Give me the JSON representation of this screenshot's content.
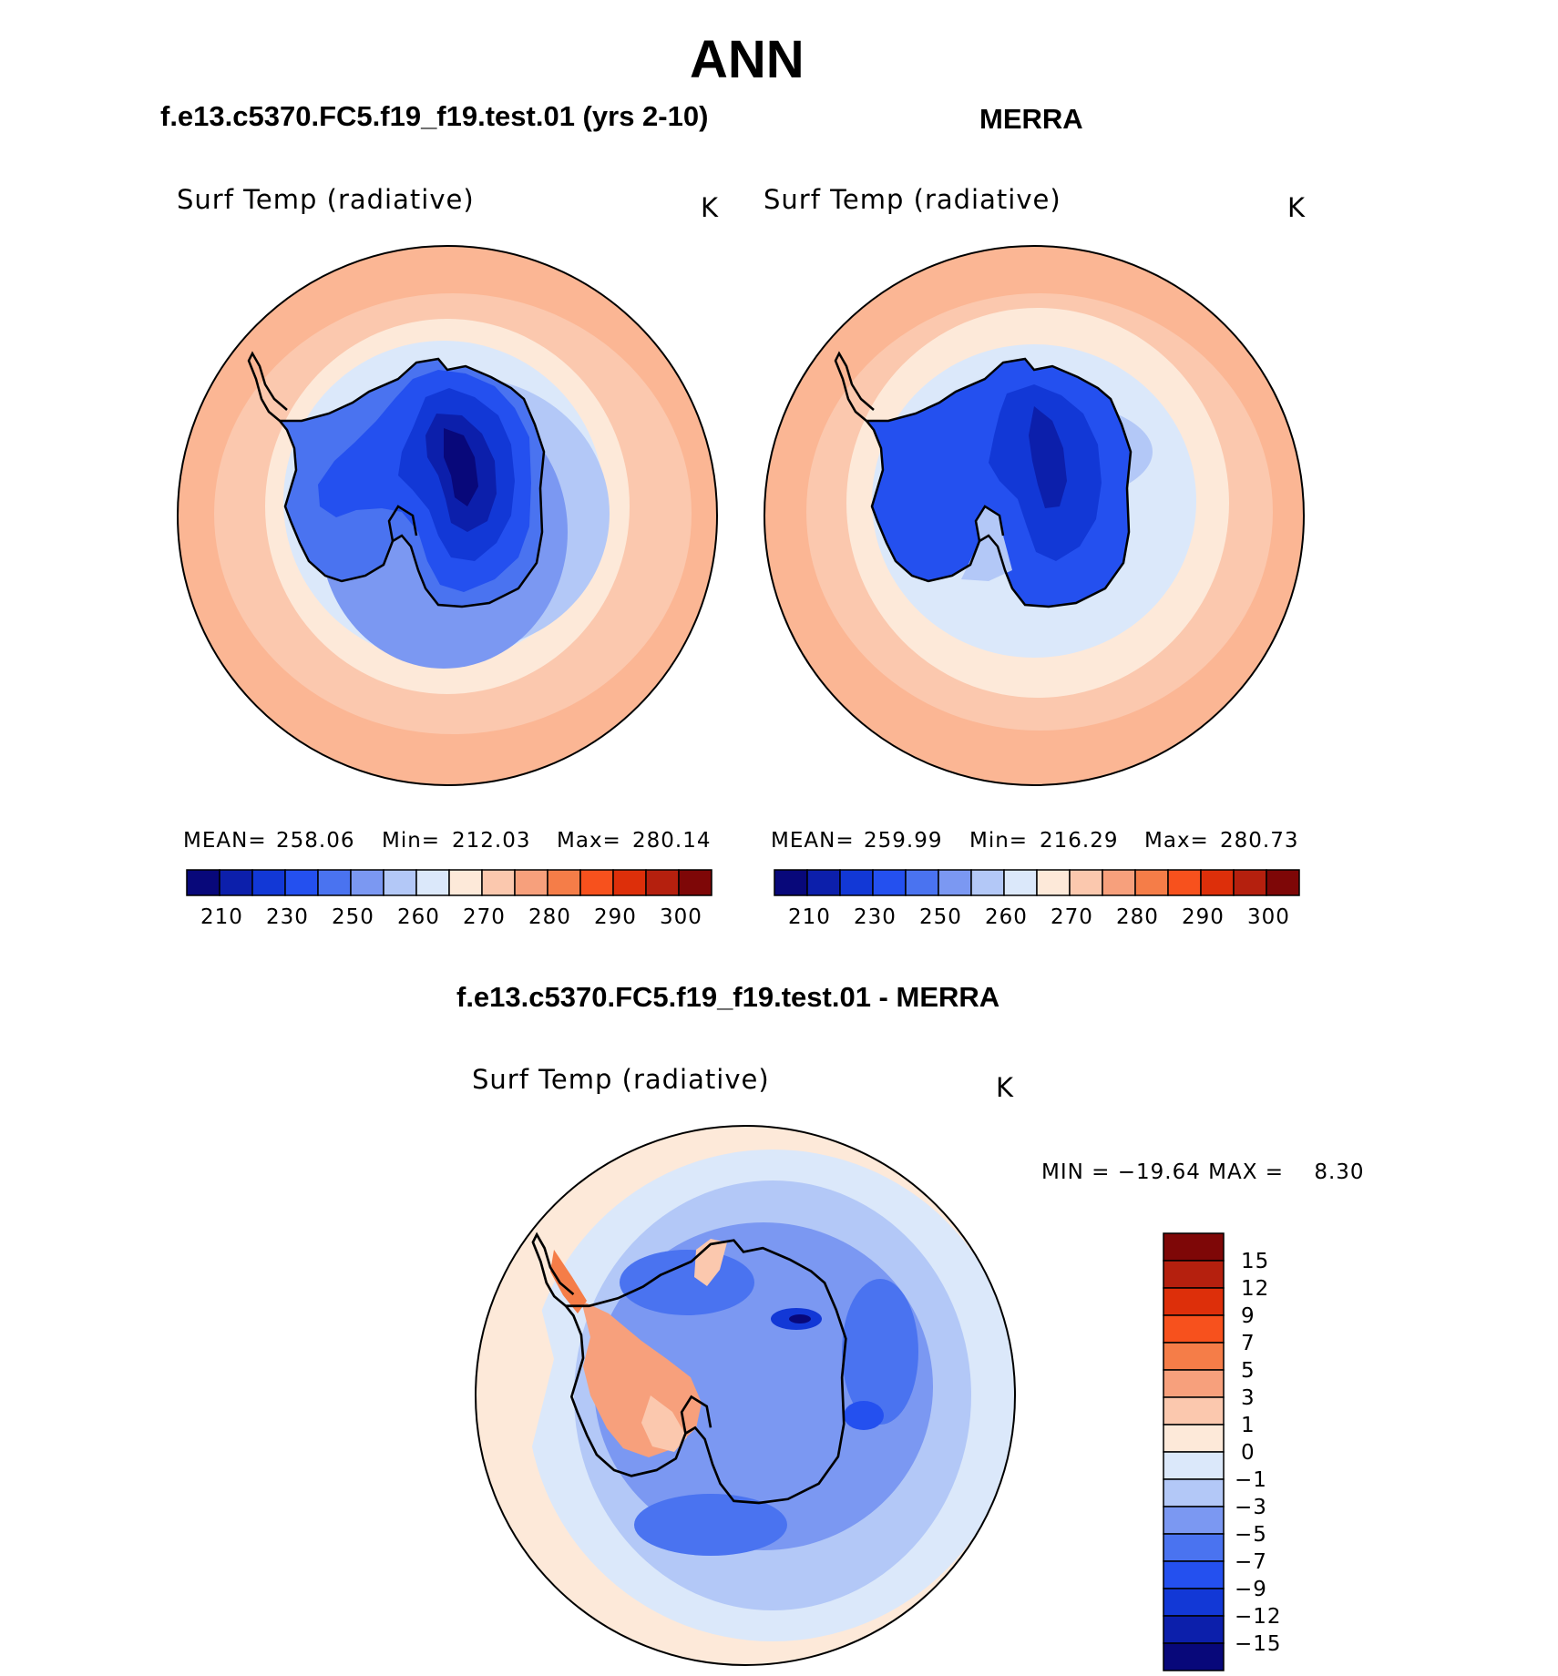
{
  "figure": {
    "title": "ANN"
  },
  "panels": [
    {
      "case_title": "f.e13.c5370.FC5.f19_f19.test.01 (yrs 2-10)",
      "variable": "Surf Temp (radiative)",
      "units": "K",
      "stats": {
        "mean_label": "MEAN=",
        "mean": "258.06",
        "min_label": "Min=",
        "min": "212.03",
        "max_label": "Max=",
        "max": "280.14"
      },
      "ticks": [
        "210",
        "230",
        "250",
        "260",
        "270",
        "280",
        "290",
        "300"
      ]
    },
    {
      "case_title": "MERRA",
      "variable": "Surf Temp (radiative)",
      "units": "K",
      "stats": {
        "mean_label": "MEAN=",
        "mean": "259.99",
        "min_label": "Min=",
        "min": "216.29",
        "max_label": "Max=",
        "max": "280.73"
      },
      "ticks": [
        "210",
        "230",
        "250",
        "260",
        "270",
        "280",
        "290",
        "300"
      ]
    }
  ],
  "difference": {
    "case_title": "f.e13.c5370.FC5.f19_f19.test.01 - MERRA",
    "variable": "Surf Temp (radiative)",
    "units": "K",
    "minmax_text": "MIN = −19.64 MAX =    8.30",
    "ticks": [
      "15",
      "12",
      "9",
      "7",
      "5",
      "3",
      "1",
      "0",
      "−1",
      "−3",
      "−5",
      "−7",
      "−9",
      "−12",
      "−15"
    ]
  },
  "colors": {
    "abs_scale": [
      "#08087a",
      "#0c1fab",
      "#1238d6",
      "#2450ef",
      "#4a73f0",
      "#7b98f2",
      "#b3c8f7",
      "#dbe8fa",
      "#fde9d9",
      "#fbc8ae",
      "#f7a07c",
      "#f57d48",
      "#f7511d",
      "#dd2f0a",
      "#b5200e",
      "#7e0707"
    ],
    "diff_scale": [
      "#7e0707",
      "#b5200e",
      "#dd2f0a",
      "#f7511d",
      "#f57d48",
      "#f7a07c",
      "#fbc8ae",
      "#fde9d9",
      "#dbe8fa",
      "#b3c8f7",
      "#7b98f2",
      "#4a73f0",
      "#2450ef",
      "#1238d6",
      "#0c1fab",
      "#08087a"
    ]
  },
  "chart_data": [
    {
      "type": "heatmap",
      "title": "f.e13.c5370.FC5.f19_f19.test.01 (yrs 2-10)",
      "subtitle": "Surf Temp (radiative)",
      "units": "K",
      "projection": "south polar stereographic",
      "mean": 258.06,
      "min": 212.03,
      "max": 280.14,
      "levels": [
        210,
        220,
        230,
        240,
        250,
        255,
        260,
        265,
        270,
        275,
        280,
        285,
        290,
        295,
        300
      ]
    },
    {
      "type": "heatmap",
      "title": "MERRA",
      "subtitle": "Surf Temp (radiative)",
      "units": "K",
      "projection": "south polar stereographic",
      "mean": 259.99,
      "min": 216.29,
      "max": 280.73,
      "levels": [
        210,
        220,
        230,
        240,
        250,
        255,
        260,
        265,
        270,
        275,
        280,
        285,
        290,
        295,
        300
      ]
    },
    {
      "type": "heatmap",
      "title": "f.e13.c5370.FC5.f19_f19.test.01 - MERRA",
      "subtitle": "Surf Temp (radiative)",
      "units": "K",
      "projection": "south polar stereographic",
      "min": -19.64,
      "max": 8.3,
      "levels": [
        -15,
        -12,
        -9,
        -7,
        -5,
        -3,
        -1,
        0,
        1,
        3,
        5,
        7,
        9,
        12,
        15
      ]
    }
  ]
}
